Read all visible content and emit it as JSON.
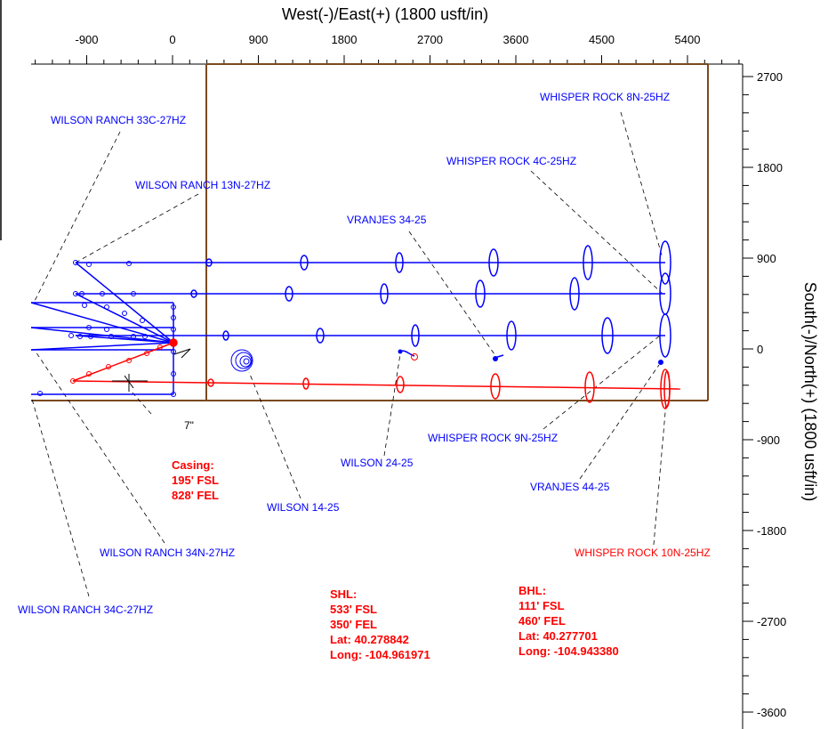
{
  "axes": {
    "x_title": "West(-)/East(+) (1800 usft/in)",
    "y_title": "South(-)/North(+) (1800 usft/in)",
    "x_ticks": [
      {
        "value": -900,
        "label": "-900"
      },
      {
        "value": 0,
        "label": "0"
      },
      {
        "value": 900,
        "label": "900"
      },
      {
        "value": 1800,
        "label": "1800"
      },
      {
        "value": 2700,
        "label": "2700"
      },
      {
        "value": 3600,
        "label": "3600"
      },
      {
        "value": 4500,
        "label": "4500"
      },
      {
        "value": 5400,
        "label": "5400"
      }
    ],
    "y_ticks": [
      {
        "value": 2700,
        "label": "2700"
      },
      {
        "value": 1800,
        "label": "1800"
      },
      {
        "value": 900,
        "label": "900"
      },
      {
        "value": 0,
        "label": "0"
      },
      {
        "value": -900,
        "label": "-900"
      },
      {
        "value": -1800,
        "label": "-1800"
      },
      {
        "value": -2700,
        "label": "-2700"
      },
      {
        "value": -3600,
        "label": "-3600"
      }
    ]
  },
  "colors": {
    "offset_wells": "#0000ff",
    "subject_well": "#ff0000",
    "lease_line": "#7a4a1e",
    "leader": "#000000"
  },
  "well_labels": [
    {
      "id": "wilson-ranch-33c-27hz",
      "text": "WILSON RANCH 33C-27HZ",
      "color": "#0000ff"
    },
    {
      "id": "wilson-ranch-13n-27hz",
      "text": "WILSON RANCH 13N-27HZ",
      "color": "#0000ff"
    },
    {
      "id": "vranjes-34-25",
      "text": "VRANJES 34-25",
      "color": "#0000ff"
    },
    {
      "id": "whisper-rock-4c-25hz",
      "text": "WHISPER ROCK 4C-25HZ",
      "color": "#0000ff"
    },
    {
      "id": "whisper-rock-8n-25hz",
      "text": "WHISPER ROCK 8N-25HZ",
      "color": "#0000ff"
    },
    {
      "id": "whisper-rock-9n-25hz",
      "text": "WHISPER ROCK 9N-25HZ",
      "color": "#0000ff"
    },
    {
      "id": "wilson-24-25",
      "text": "WILSON 24-25",
      "color": "#0000ff"
    },
    {
      "id": "vranjes-44-25",
      "text": "VRANJES 44-25",
      "color": "#0000ff"
    },
    {
      "id": "wilson-14-25",
      "text": "WILSON 14-25",
      "color": "#0000ff"
    },
    {
      "id": "wilson-ranch-34n-27hz",
      "text": "WILSON RANCH 34N-27HZ",
      "color": "#0000ff"
    },
    {
      "id": "wilson-ranch-34c-27hz",
      "text": "WILSON RANCH 34C-27HZ",
      "color": "#0000ff"
    },
    {
      "id": "whisper-rock-10n-25hz",
      "text": "WHISPER ROCK 10N-25HZ",
      "color": "#ff0000"
    }
  ],
  "annotation_7": "7\"",
  "casing": {
    "lines": [
      "Casing:",
      "195' FSL",
      "828' FEL"
    ]
  },
  "shl": {
    "lines": [
      "SHL:",
      "533' FSL",
      "350' FEL",
      "Lat: 40.278842",
      "Long: -104.961971"
    ]
  },
  "bhl": {
    "lines": [
      "BHL:",
      "111' FSL",
      "460' FEL",
      "Lat: 40.277701",
      "Long: -104.943380"
    ]
  }
}
